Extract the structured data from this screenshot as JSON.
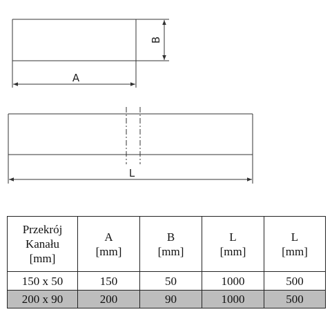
{
  "drawing": {
    "top_view": {
      "width_label": "A",
      "height_label": "B"
    },
    "side_view": {
      "length_label": "L"
    }
  },
  "table": {
    "header": [
      [
        "Przekrój",
        "Kanału",
        "[mm]"
      ],
      [
        "A",
        "[mm]"
      ],
      [
        "B",
        "[mm]"
      ],
      [
        "L",
        "[mm]"
      ],
      [
        "L",
        "[mm]"
      ]
    ],
    "rows": [
      [
        "150 x 50",
        150,
        50,
        1000,
        500
      ],
      [
        "200 x 90",
        200,
        90,
        1000,
        500
      ]
    ]
  }
}
